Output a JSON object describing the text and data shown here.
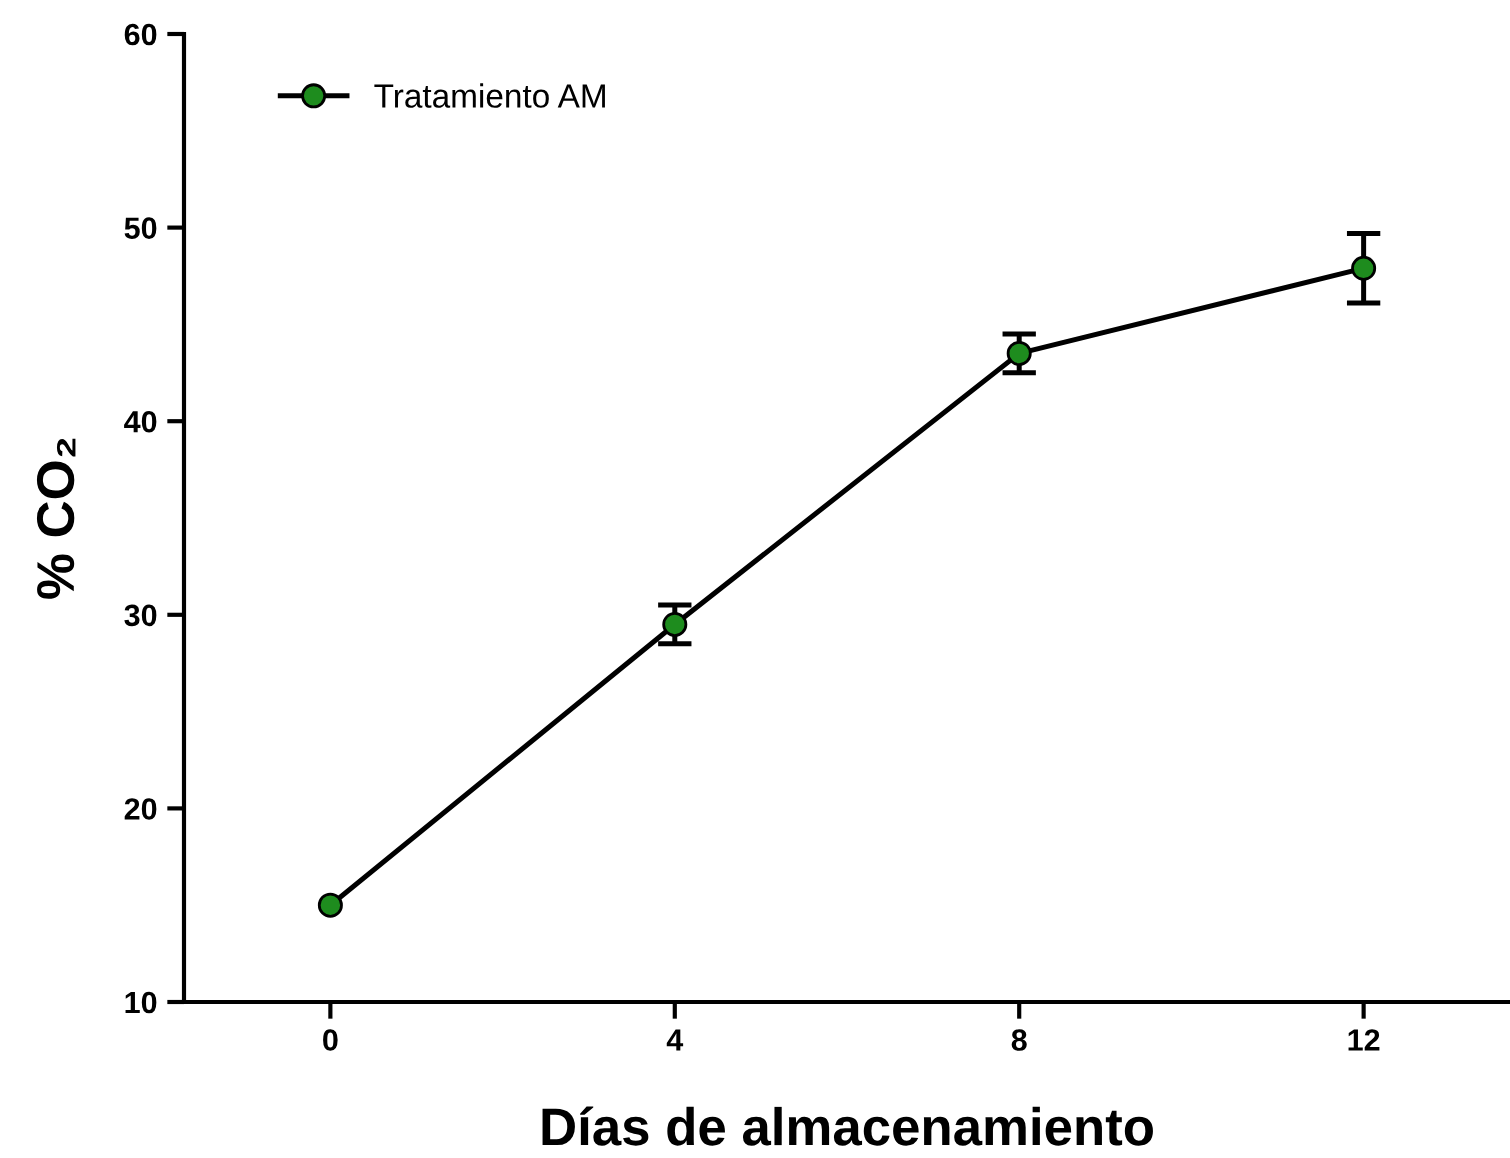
{
  "chart_data": {
    "type": "line",
    "xlabel": "Días de almacenamiento",
    "ylabel": "% CO₂",
    "x": [
      0,
      4,
      8,
      12
    ],
    "series": [
      {
        "name": "Tratamiento AM",
        "color": "#1e8c1e",
        "values": [
          15.0,
          29.5,
          43.5,
          47.9
        ],
        "errors": [
          null,
          1.0,
          1.0,
          1.8
        ]
      }
    ],
    "xlim": [
      -1.7,
      13.7
    ],
    "xticks": [
      0,
      4,
      8,
      12
    ],
    "ylim": [
      10,
      60
    ],
    "yticks": [
      10,
      20,
      30,
      40,
      50,
      60
    ],
    "marker": "circle",
    "line_style": "solid",
    "legend": "top left",
    "grid": false
  }
}
